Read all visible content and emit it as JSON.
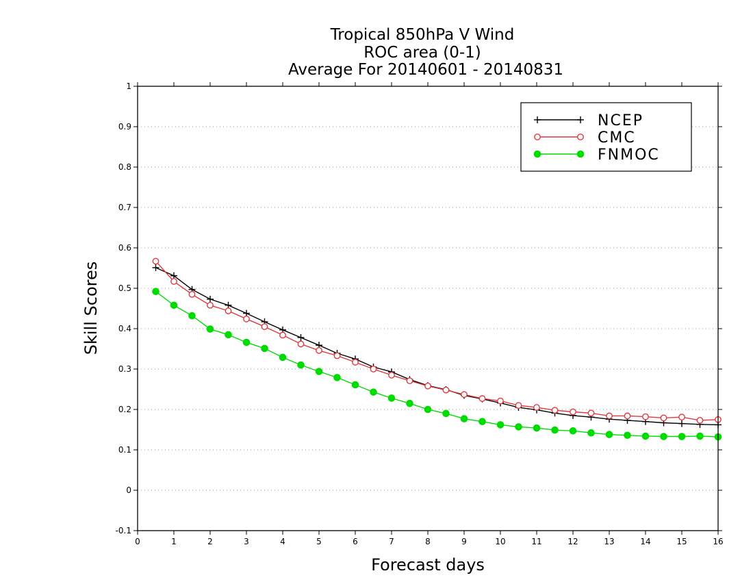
{
  "chart_data": {
    "type": "line",
    "title_lines": [
      "Tropical 850hPa V Wind",
      "ROC area (0-1)",
      "Average For 20140601 - 20140831"
    ],
    "xlabel": "Forecast days",
    "ylabel": "Skill Scores",
    "xlim": [
      0,
      16
    ],
    "ylim": [
      -0.1,
      1
    ],
    "xticks": [
      "0",
      "1",
      "2",
      "3",
      "4",
      "5",
      "6",
      "7",
      "8",
      "9",
      "10",
      "11",
      "12",
      "13",
      "14",
      "15",
      "16"
    ],
    "yticks": [
      "-0.1",
      "0",
      "0.1",
      "0.2",
      "0.3",
      "0.4",
      "0.5",
      "0.6",
      "0.7",
      "0.8",
      "0.9",
      "1"
    ],
    "grid": "horizontal dotted",
    "legend_position": "top-right",
    "x": [
      0.5,
      1,
      1.5,
      2,
      2.5,
      3,
      3.5,
      4,
      4.5,
      5,
      5.5,
      6,
      6.5,
      7,
      7.5,
      8,
      8.5,
      9,
      9.5,
      10,
      10.5,
      11,
      11.5,
      12,
      12.5,
      13,
      13.5,
      14,
      14.5,
      15,
      15.5,
      16
    ],
    "series": [
      {
        "name": "NCEP",
        "color": "#000000",
        "marker": "plus",
        "values": [
          0.551,
          0.531,
          0.497,
          0.473,
          0.458,
          0.438,
          0.417,
          0.397,
          0.378,
          0.359,
          0.339,
          0.325,
          0.305,
          0.293,
          0.274,
          0.259,
          0.249,
          0.235,
          0.226,
          0.216,
          0.205,
          0.199,
          0.191,
          0.185,
          0.181,
          0.176,
          0.173,
          0.17,
          0.167,
          0.165,
          0.163,
          0.162
        ]
      },
      {
        "name": "CMC",
        "color": "#e0383e",
        "marker": "open-circle",
        "values": [
          0.567,
          0.517,
          0.485,
          0.458,
          0.444,
          0.424,
          0.405,
          0.384,
          0.362,
          0.346,
          0.333,
          0.317,
          0.3,
          0.285,
          0.271,
          0.258,
          0.248,
          0.237,
          0.227,
          0.221,
          0.21,
          0.205,
          0.198,
          0.194,
          0.191,
          0.184,
          0.184,
          0.182,
          0.179,
          0.181,
          0.173,
          0.175
        ]
      },
      {
        "name": "FNMOC",
        "color": "#00dc00",
        "marker": "filled-circle",
        "values": [
          0.492,
          0.458,
          0.432,
          0.399,
          0.385,
          0.366,
          0.351,
          0.329,
          0.31,
          0.294,
          0.279,
          0.261,
          0.243,
          0.228,
          0.215,
          0.2,
          0.19,
          0.177,
          0.17,
          0.162,
          0.157,
          0.154,
          0.149,
          0.147,
          0.142,
          0.138,
          0.136,
          0.134,
          0.133,
          0.133,
          0.134,
          0.132
        ]
      }
    ]
  }
}
